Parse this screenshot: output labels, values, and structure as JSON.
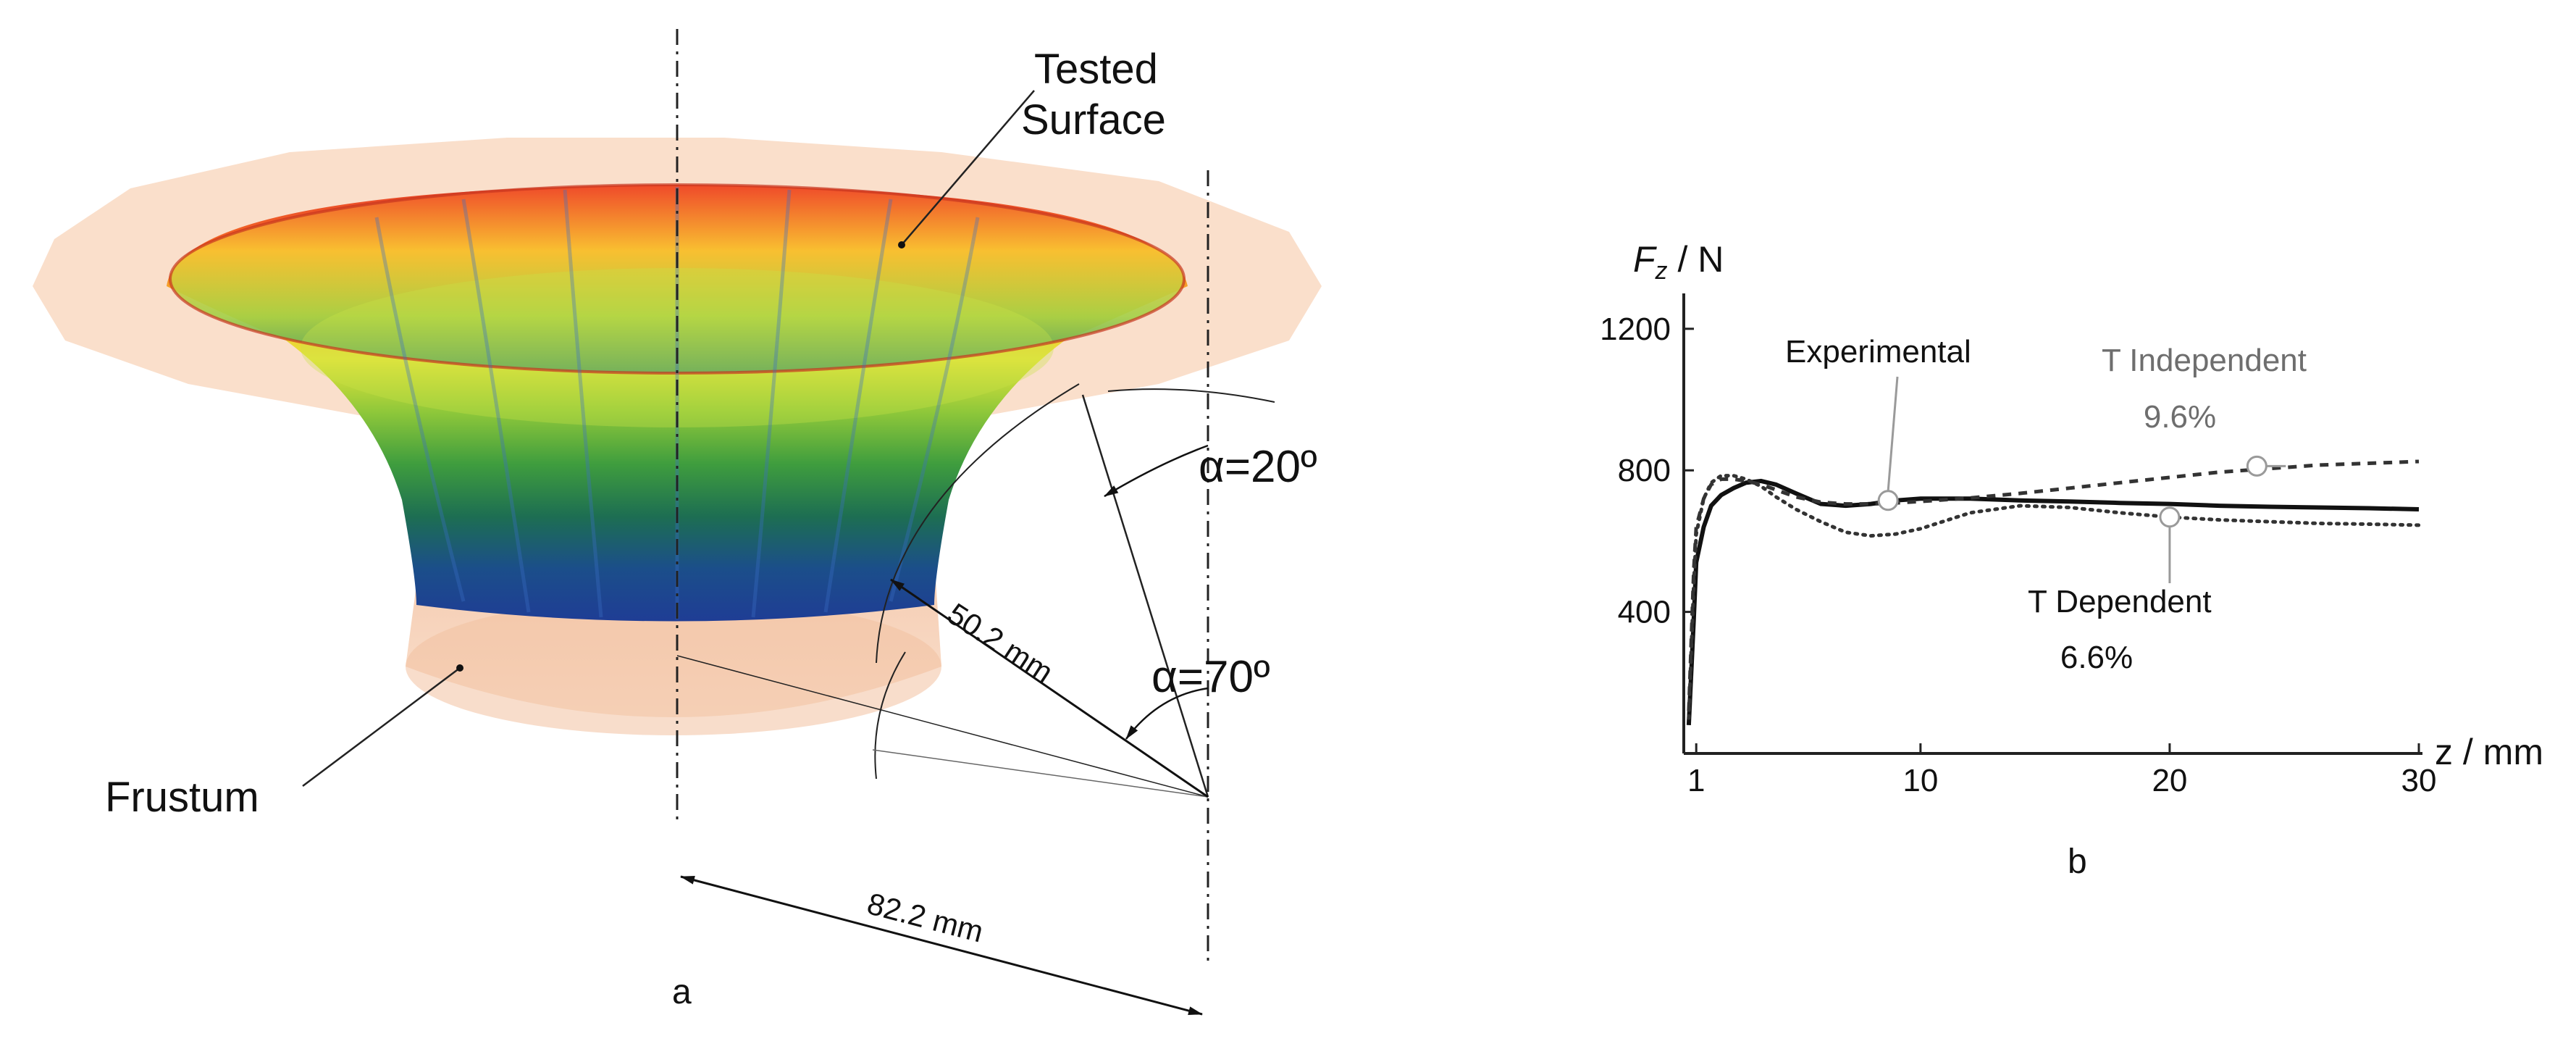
{
  "panel_a": {
    "tested_surface_line1": "Tested",
    "tested_surface_line2": "Surface",
    "frustum": "Frustum",
    "alpha_20": "α=20º",
    "alpha_70": "α=70º",
    "radius": "50.2 mm",
    "width": "82.2 mm",
    "caption": "a"
  },
  "panel_b": {
    "caption": "b",
    "chart_data": {
      "type": "line",
      "ylabel": "Fz / N",
      "ylabel_main": "F",
      "ylabel_sub": "z",
      "ylabel_unit": " / N",
      "xlabel": "z / mm",
      "xlim": [
        0.5,
        30
      ],
      "ylim": [
        0,
        1300
      ],
      "x_ticks": [
        1,
        10,
        20,
        30
      ],
      "y_ticks": [
        400,
        800,
        1200
      ],
      "series": [
        {
          "name": "Experimental",
          "style": "solid",
          "x": [
            0.7,
            0.9,
            1.0,
            1.3,
            1.6,
            2.0,
            2.5,
            3.0,
            3.6,
            4.2,
            5.0,
            6.0,
            7.0,
            8.0,
            9.0,
            10.0,
            12.0,
            14.0,
            16.0,
            18.0,
            20.0,
            22.0,
            24.0,
            26.0,
            28.0,
            30.0
          ],
          "y": [
            80,
            380,
            540,
            640,
            700,
            730,
            750,
            765,
            770,
            760,
            735,
            705,
            700,
            705,
            715,
            720,
            720,
            715,
            712,
            708,
            705,
            700,
            697,
            695,
            693,
            690
          ]
        },
        {
          "name": "T Independent",
          "label": "9.6%",
          "style": "dashed",
          "x": [
            0.7,
            0.9,
            1.0,
            1.3,
            1.6,
            2.0,
            2.5,
            3.0,
            3.6,
            4.2,
            5.0,
            6.0,
            7.0,
            8.0,
            9.0,
            10.0,
            12.0,
            14.0,
            16.0,
            18.0,
            20.0,
            22.0,
            24.0,
            26.0,
            28.0,
            30.0
          ],
          "y": [
            120,
            520,
            640,
            720,
            760,
            775,
            775,
            770,
            760,
            745,
            725,
            710,
            705,
            705,
            708,
            712,
            722,
            735,
            750,
            765,
            780,
            795,
            805,
            815,
            820,
            825
          ]
        },
        {
          "name": "T Dependent",
          "label": "6.6%",
          "style": "dotted",
          "x": [
            0.7,
            0.9,
            1.0,
            1.3,
            1.6,
            2.0,
            2.5,
            3.0,
            3.6,
            4.2,
            5.0,
            6.0,
            7.0,
            8.0,
            9.0,
            10.0,
            12.0,
            14.0,
            16.0,
            18.0,
            20.0,
            22.0,
            24.0,
            26.0,
            28.0,
            30.0
          ],
          "y": [
            100,
            480,
            620,
            720,
            765,
            785,
            785,
            775,
            755,
            725,
            690,
            655,
            625,
            615,
            620,
            635,
            680,
            700,
            695,
            680,
            668,
            660,
            655,
            650,
            648,
            645
          ]
        }
      ],
      "annotations": [
        {
          "series": "Experimental",
          "text": "Experimental",
          "x": 8.7,
          "y": 715
        },
        {
          "series": "T Independent",
          "text": "T Independent",
          "x": 23.5,
          "y": 812
        },
        {
          "series": "T Dependent",
          "text": "T Dependent",
          "x": 20.0,
          "y": 668
        }
      ]
    }
  },
  "colors": {
    "axis": "#222222",
    "annotation_gray": "#9a9a9a",
    "frustum_fill": "#f5c9a8"
  }
}
